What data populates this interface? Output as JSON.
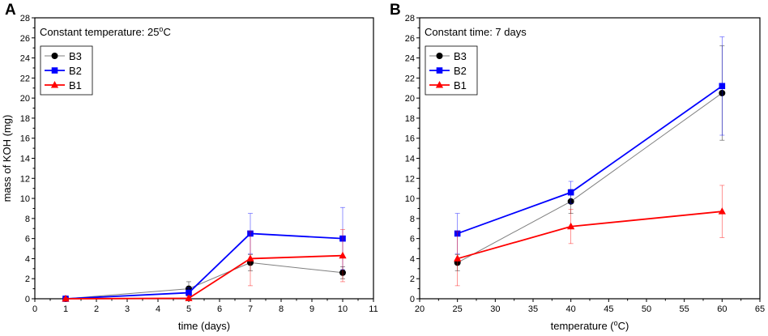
{
  "chart_data": [
    {
      "type": "line",
      "panel": "A",
      "annotation": "Constant temperature: 25",
      "annotation_sup": "o",
      "annotation_suffix": "C",
      "xlabel": "time (days)",
      "ylabel": "mass of KOH (mg)",
      "xlim": [
        0,
        11
      ],
      "ylim": [
        0,
        28
      ],
      "xticks": [
        0,
        1,
        2,
        3,
        4,
        5,
        6,
        7,
        8,
        9,
        10,
        11
      ],
      "yticks": [
        0,
        2,
        4,
        6,
        8,
        10,
        12,
        14,
        16,
        18,
        20,
        22,
        24,
        26,
        28
      ],
      "legend_position": "top-left",
      "x": [
        1,
        5,
        7,
        10
      ],
      "series": [
        {
          "name": "B3",
          "color": "#7f7f7f",
          "marker_color": "#000000",
          "marker": "circle",
          "values": [
            0.0,
            1.0,
            3.6,
            2.6
          ],
          "errors": [
            0.1,
            0.7,
            0.8,
            0.6
          ]
        },
        {
          "name": "B2",
          "color": "#0000ff",
          "marker_color": "#0000ff",
          "marker": "square",
          "values": [
            0.0,
            0.6,
            6.5,
            6.0
          ],
          "errors": [
            0.1,
            0.5,
            2.0,
            3.1
          ]
        },
        {
          "name": "B1",
          "color": "#ff0000",
          "marker_color": "#ff0000",
          "marker": "triangle",
          "values": [
            0.0,
            0.05,
            4.0,
            4.3
          ],
          "errors": [
            0.1,
            0.2,
            2.7,
            2.6
          ]
        }
      ]
    },
    {
      "type": "line",
      "panel": "B",
      "annotation": "Constant time: 7 days",
      "annotation_sup": "",
      "annotation_suffix": "",
      "xlabel": "temperature (",
      "xlabel_sup": "o",
      "xlabel_suffix": "C)",
      "ylabel": "",
      "xlim": [
        20,
        65
      ],
      "ylim": [
        0,
        28
      ],
      "xticks": [
        20,
        25,
        30,
        35,
        40,
        45,
        50,
        55,
        60,
        65
      ],
      "yticks": [
        0,
        2,
        4,
        6,
        8,
        10,
        12,
        14,
        16,
        18,
        20,
        22,
        24,
        26,
        28
      ],
      "legend_position": "top-left",
      "x": [
        25,
        40,
        60
      ],
      "series": [
        {
          "name": "B3",
          "color": "#7f7f7f",
          "marker_color": "#000000",
          "marker": "circle",
          "values": [
            3.6,
            9.7,
            20.5
          ],
          "errors": [
            0.8,
            1.2,
            4.7
          ]
        },
        {
          "name": "B2",
          "color": "#0000ff",
          "marker_color": "#0000ff",
          "marker": "square",
          "values": [
            6.5,
            10.6,
            21.2
          ],
          "errors": [
            2.0,
            1.1,
            4.9
          ]
        },
        {
          "name": "B1",
          "color": "#ff0000",
          "marker_color": "#ff0000",
          "marker": "triangle",
          "values": [
            4.0,
            7.2,
            8.7
          ],
          "errors": [
            2.7,
            1.7,
            2.6
          ]
        }
      ]
    }
  ]
}
